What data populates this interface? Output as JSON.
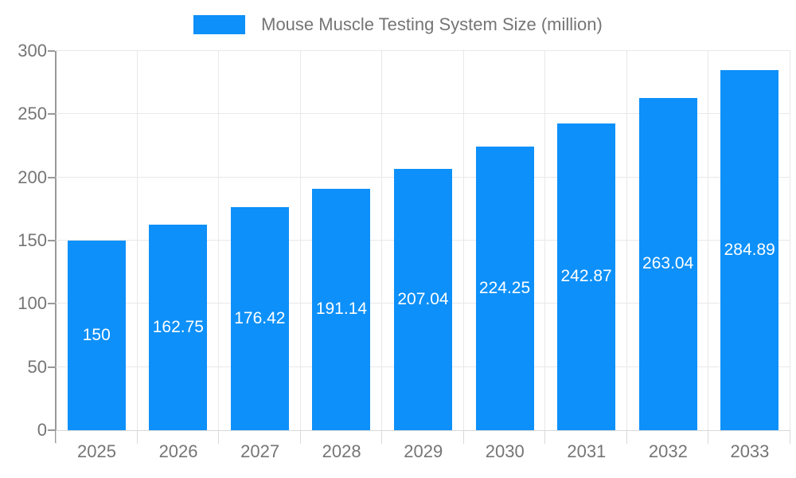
{
  "chart_data": {
    "type": "bar",
    "title": "Mouse Muscle Testing System Size (million)",
    "legend": {
      "position": "top",
      "label": "Mouse Muscle Testing System Size (million)"
    },
    "categories": [
      "2025",
      "2026",
      "2027",
      "2028",
      "2029",
      "2030",
      "2031",
      "2032",
      "2033"
    ],
    "values": [
      150,
      162.75,
      176.42,
      191.14,
      207.04,
      224.25,
      242.87,
      263.04,
      284.89
    ],
    "value_labels": [
      "150",
      "162.75",
      "176.42",
      "191.14",
      "207.04",
      "224.25",
      "242.87",
      "263.04",
      "284.89"
    ],
    "xlabel": "",
    "ylabel": "",
    "ylim": [
      0,
      300
    ],
    "yticks": [
      0,
      50,
      100,
      150,
      200,
      250,
      300
    ],
    "grid": true,
    "colors": {
      "bar": "#0d90f9",
      "legend_text": "#757575",
      "axis_text": "#757575",
      "grid_line": "#e8e8e8",
      "axis_line": "#999999",
      "value_label": "#ffffff",
      "background": "#ffffff"
    }
  }
}
